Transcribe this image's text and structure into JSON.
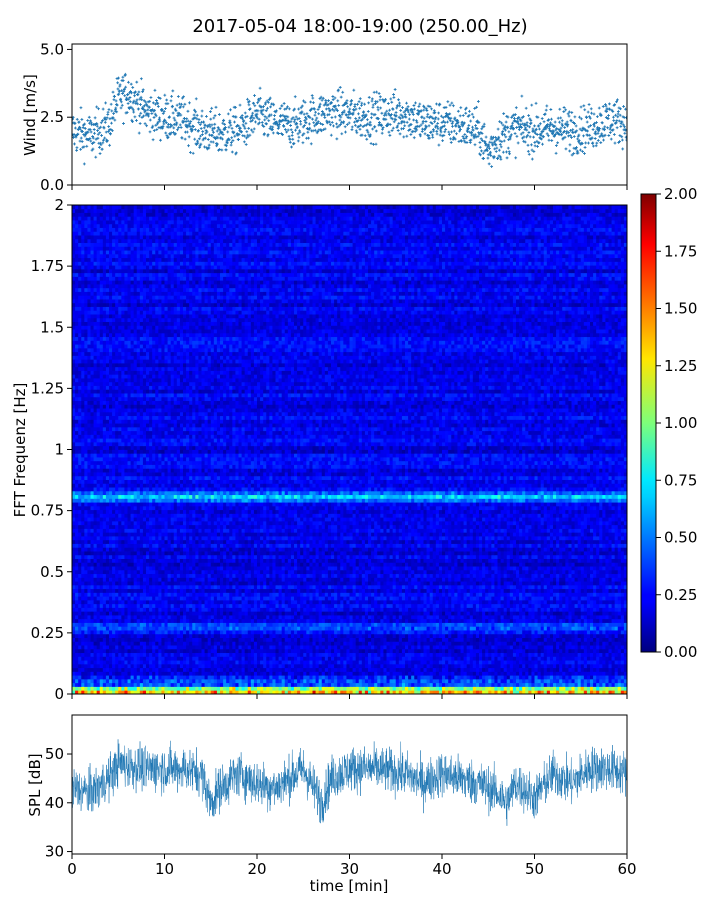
{
  "figure": {
    "title": "2017-05-04 18:00-19:00 (250.00_Hz)"
  },
  "chart_data": [
    {
      "name": "wind",
      "type": "scatter",
      "ylabel": "Wind [m/s]",
      "xlim": [
        0,
        60
      ],
      "ylim": [
        0,
        5.2
      ],
      "yticks": [
        "0.0",
        "2.5",
        "5.0"
      ],
      "color": "#1f77b4",
      "x_profile": [
        0,
        2,
        4,
        5,
        6,
        7,
        8,
        10,
        12,
        14,
        16,
        18,
        20,
        22,
        24,
        26,
        28,
        30,
        32,
        34,
        36,
        38,
        40,
        42,
        44,
        45,
        46,
        48,
        50,
        52,
        54,
        56,
        58,
        60
      ],
      "mean_profile": [
        2.0,
        1.8,
        2.2,
        3.2,
        3.4,
        3.1,
        2.7,
        2.5,
        2.4,
        2.0,
        1.9,
        2.0,
        2.6,
        2.3,
        2.2,
        2.5,
        2.7,
        2.6,
        2.5,
        2.6,
        2.6,
        2.3,
        2.3,
        2.2,
        2.0,
        1.2,
        1.7,
        2.1,
        2.0,
        2.1,
        2.0,
        2.1,
        2.4,
        2.3
      ],
      "point_count": 1800
    },
    {
      "name": "spectrogram",
      "type": "heatmap",
      "ylabel": "FFT Frequenz [Hz]",
      "xlim": [
        0,
        60
      ],
      "ylim": [
        0,
        2
      ],
      "yticks": [
        "0",
        "0.25",
        "0.5",
        "0.75",
        "1",
        "1.25",
        "1.5",
        "1.75",
        "2"
      ],
      "colormap": "jet",
      "colorbar": {
        "min": 0,
        "max": 2,
        "ticks": [
          "0.00",
          "0.25",
          "0.50",
          "0.75",
          "1.00",
          "1.25",
          "1.50",
          "1.75",
          "2.00"
        ]
      },
      "background_level": 0.22,
      "bands": [
        {
          "freq": 0.81,
          "level": 0.75
        },
        {
          "freq": 0.27,
          "level": 0.5
        },
        {
          "freq": 0.01,
          "level": 1.5
        }
      ]
    },
    {
      "name": "spl",
      "type": "line",
      "ylabel": "SPL [dB]",
      "xlabel": "time [min]",
      "xlim": [
        0,
        60
      ],
      "ylim": [
        29.5,
        58
      ],
      "xticks": [
        "0",
        "10",
        "20",
        "30",
        "40",
        "50",
        "60"
      ],
      "yticks": [
        "30",
        "40",
        "50"
      ],
      "color": "#1f77b4",
      "x_profile": [
        0,
        2,
        4,
        5,
        8,
        12,
        14,
        15,
        16,
        18,
        20,
        22,
        25,
        27,
        28,
        30,
        33,
        36,
        38,
        40,
        42,
        44,
        46,
        47,
        48,
        50,
        52,
        54,
        56,
        58,
        60
      ],
      "mean_profile": [
        43,
        42,
        45,
        48,
        47,
        47,
        46,
        40,
        43,
        46,
        44,
        43,
        47,
        40,
        45,
        47,
        47,
        46,
        44,
        46,
        45,
        44,
        42,
        40,
        44,
        41,
        46,
        44,
        47,
        47,
        46
      ]
    }
  ]
}
